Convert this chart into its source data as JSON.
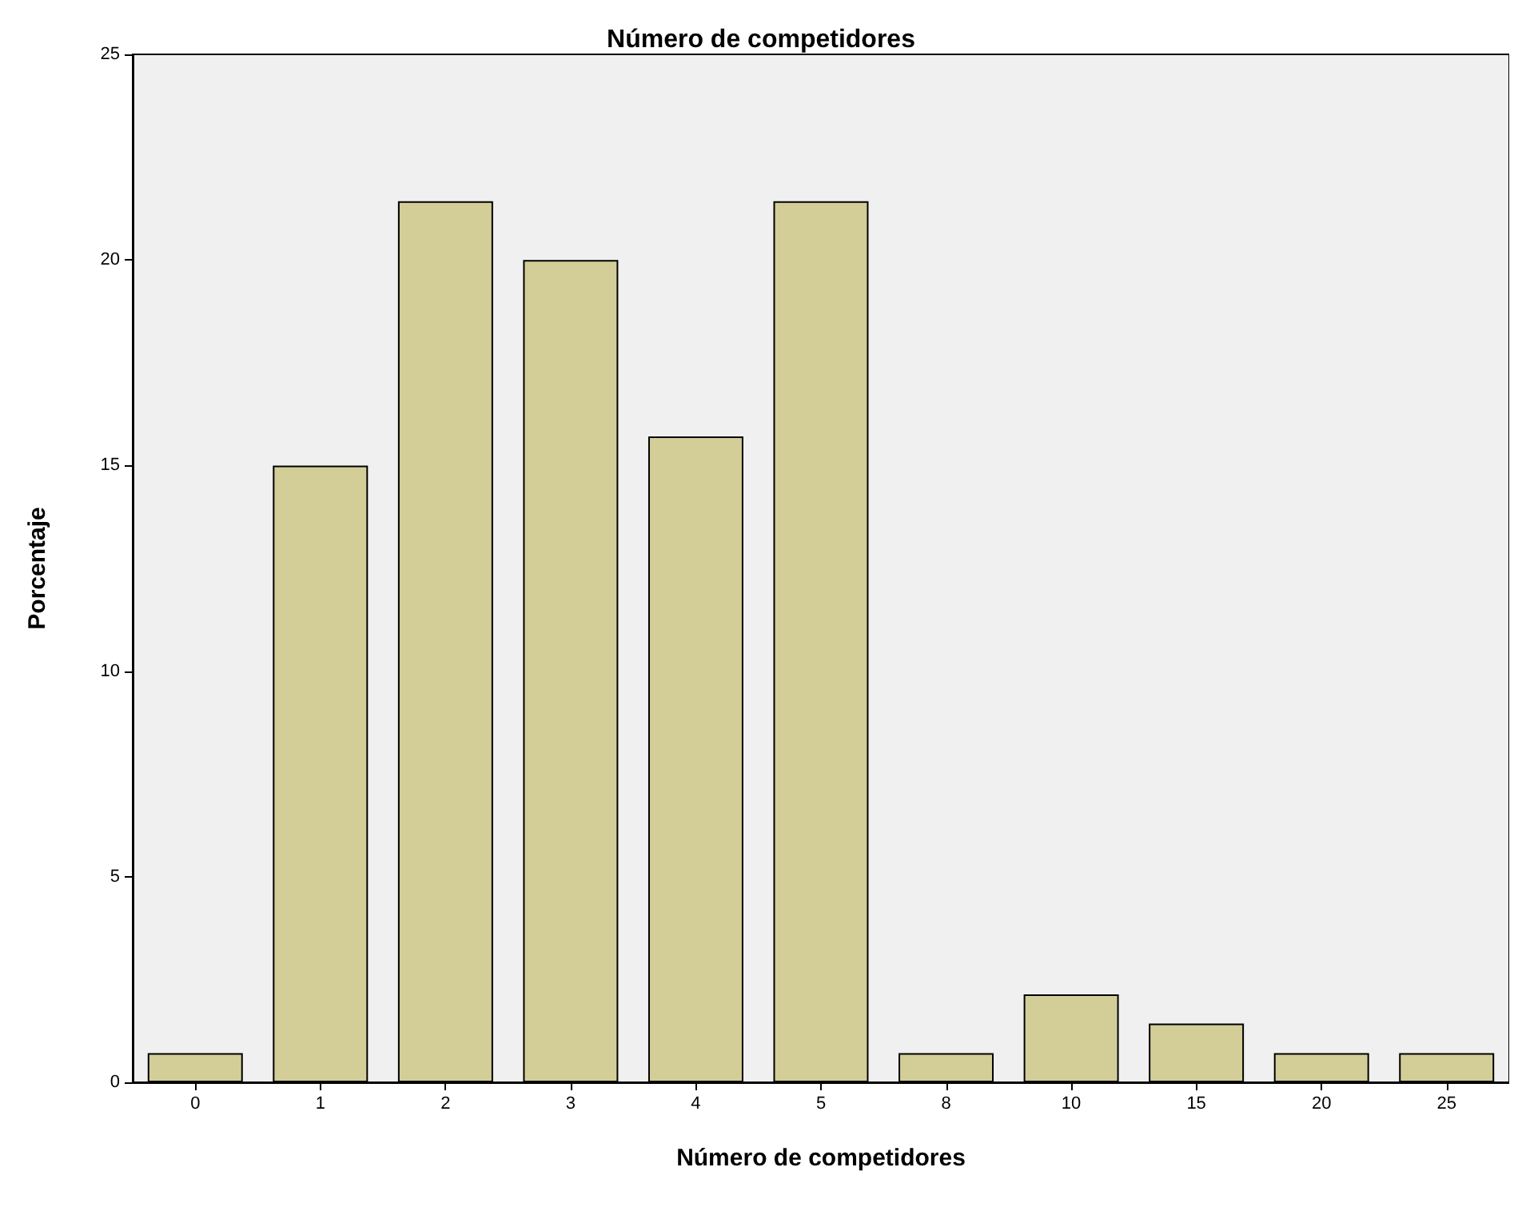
{
  "chart_data": {
    "type": "bar",
    "title": "Número de competidores",
    "xlabel": "Número de competidores",
    "ylabel": "Porcentaje",
    "categories": [
      "0",
      "1",
      "2",
      "3",
      "4",
      "5",
      "8",
      "10",
      "15",
      "20",
      "25"
    ],
    "values": [
      0.71,
      15,
      21.43,
      20,
      15.71,
      21.43,
      0.71,
      2.14,
      1.43,
      0.71,
      0.71
    ],
    "color": "#d3ce97",
    "ylim": [
      0,
      25
    ],
    "yticks": [
      0,
      5,
      10,
      15,
      20,
      25
    ],
    "grid": false
  }
}
